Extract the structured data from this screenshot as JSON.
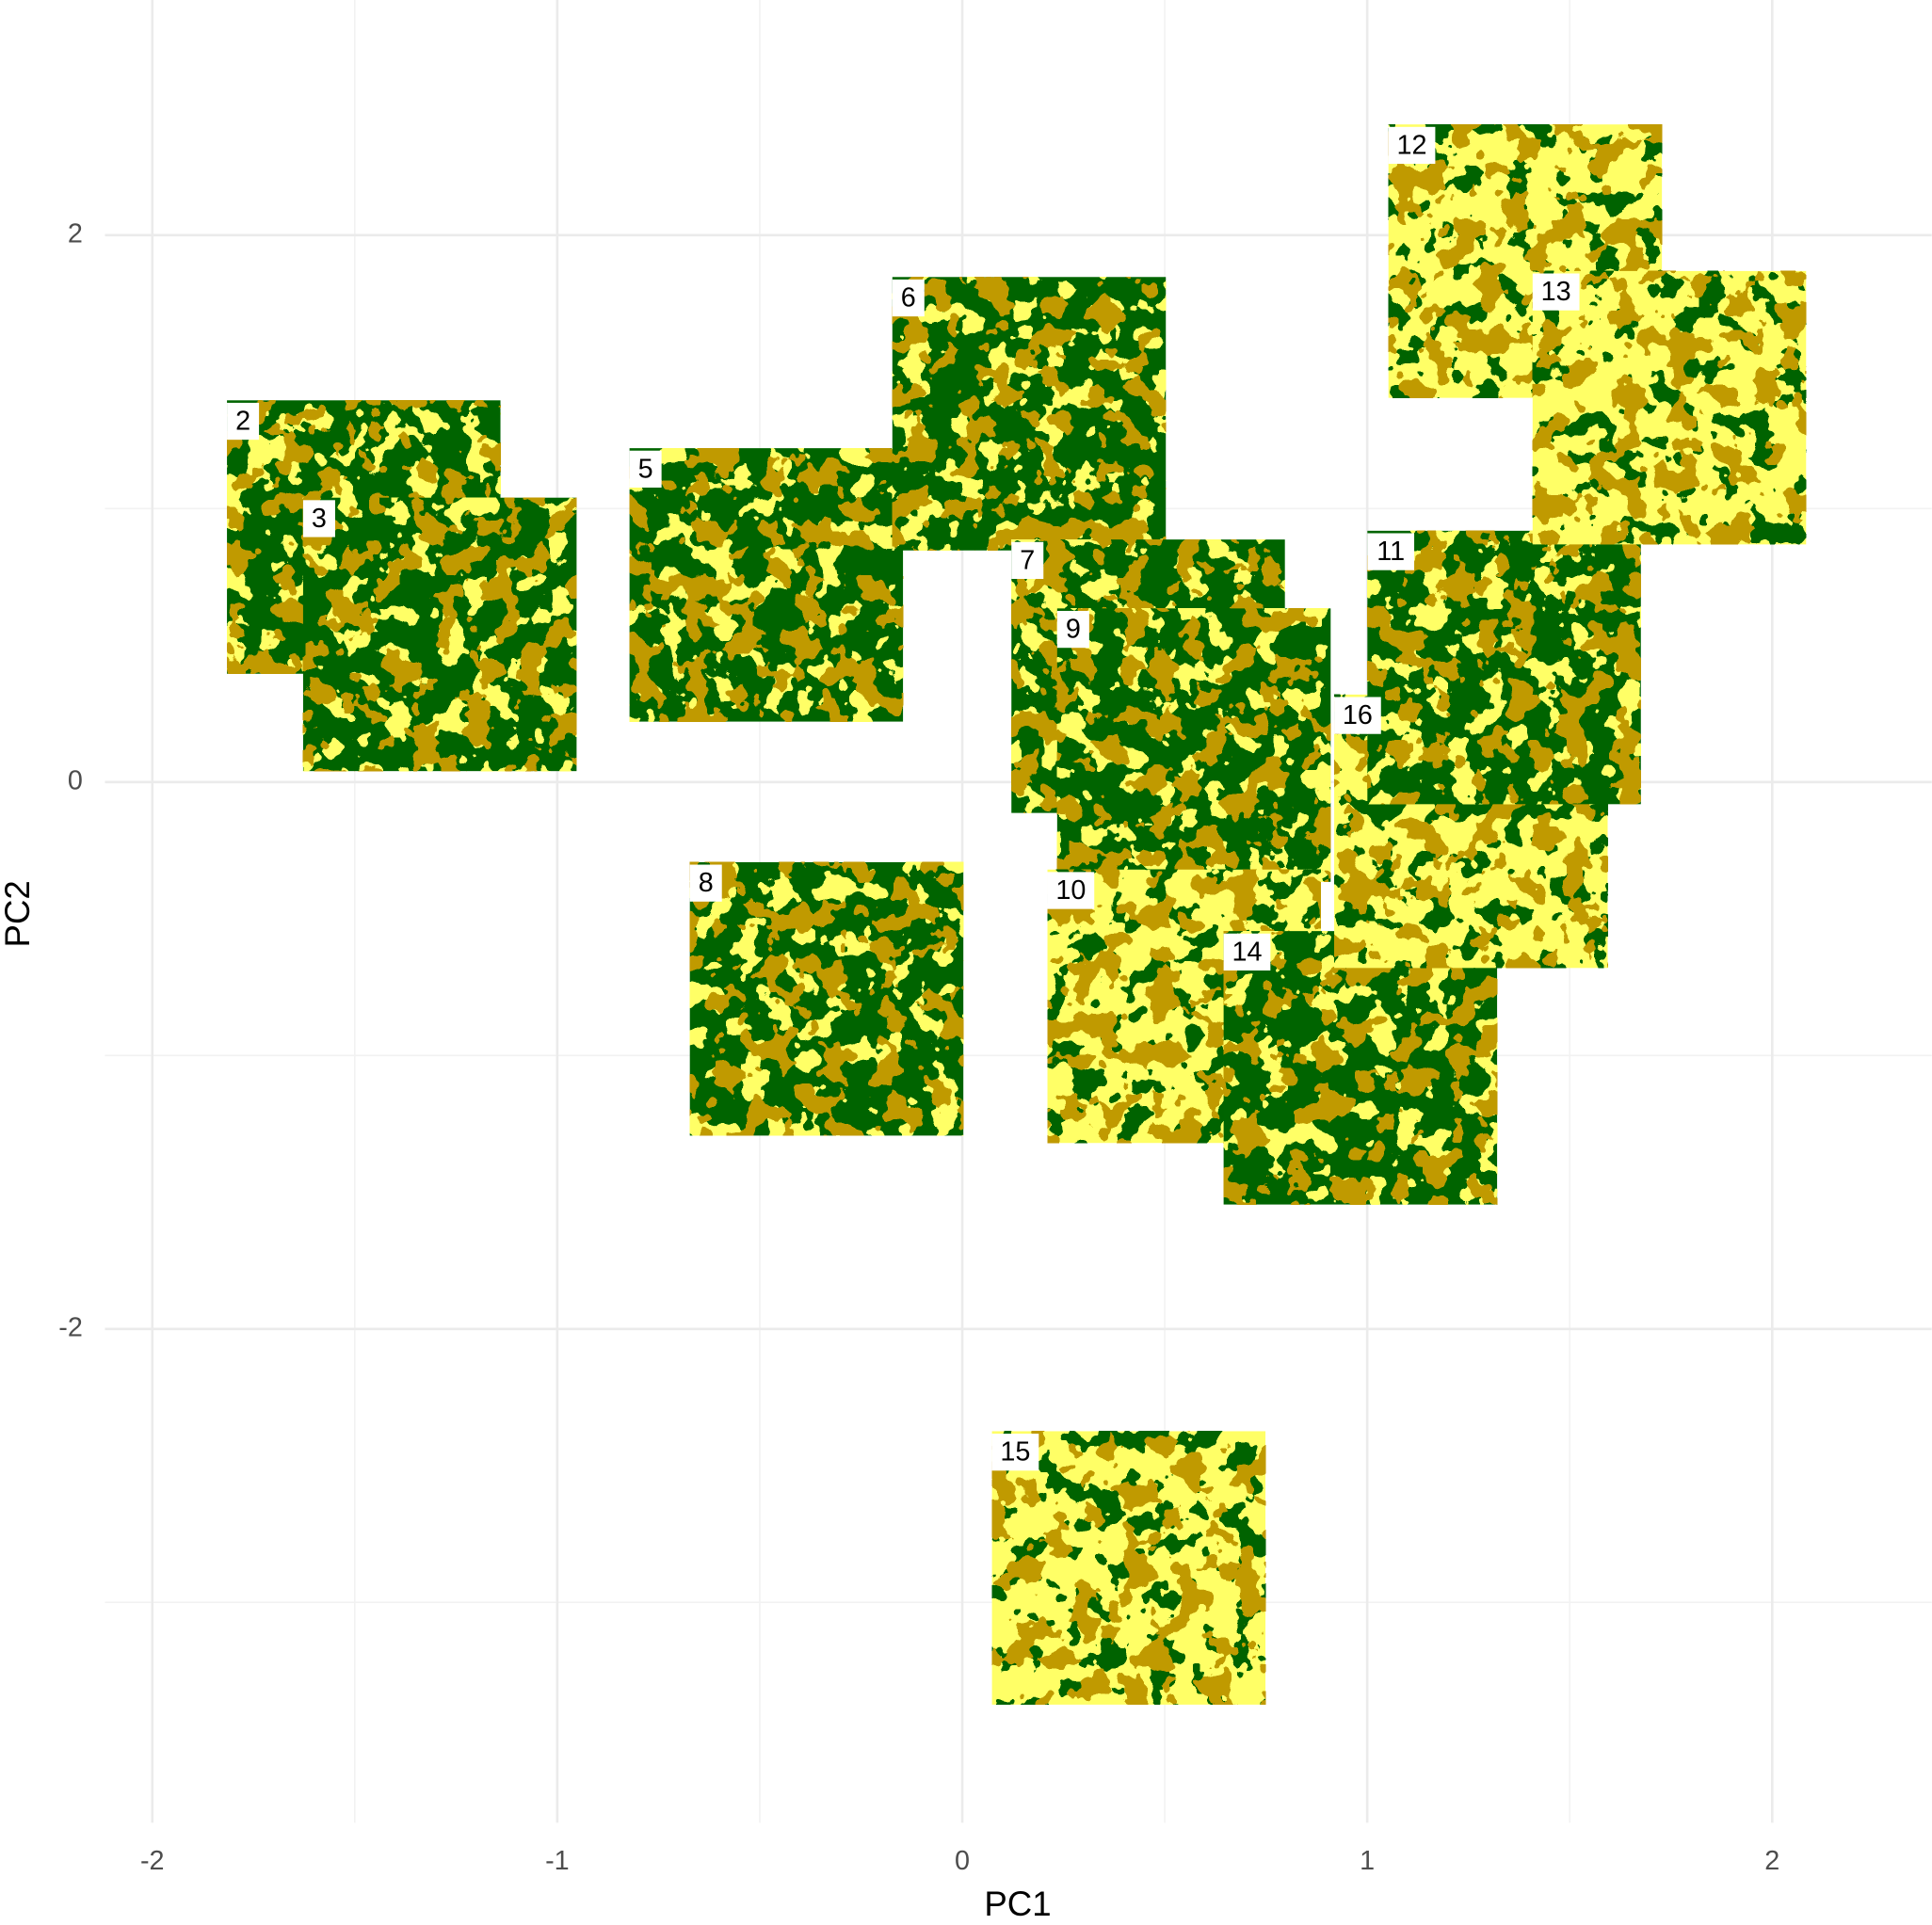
{
  "chart_data": {
    "type": "scatter",
    "xlabel": "PC1",
    "ylabel": "PC2",
    "labels": [
      "2",
      "3",
      "5",
      "6",
      "7",
      "9",
      "8",
      "10",
      "14",
      "16",
      "11",
      "12",
      "13",
      "15"
    ],
    "x": [
      -1.478,
      -1.29,
      -0.484,
      0.165,
      0.459,
      0.572,
      -0.335,
      0.548,
      0.983,
      1.256,
      1.338,
      1.39,
      1.746,
      0.411
    ],
    "values": [
      0.896,
      0.54,
      0.721,
      1.347,
      0.387,
      0.135,
      -0.793,
      -0.82,
      -1.045,
      -0.18,
      0.419,
      1.905,
      1.369,
      -2.874
    ],
    "colors": [
      "#006400",
      "#006400",
      "#006400",
      "#006400",
      "#006400",
      "#006400",
      "#006400",
      "#ffff66",
      "#006400",
      "#ffff66",
      "#006400",
      "#ffff66",
      "#ffff66",
      "#ffff66"
    ],
    "palette": [
      "#ffff66",
      "#c09a00",
      "#006400"
    ],
    "xlim": [
      -2.117,
      2.394
    ],
    "ylim": [
      -3.806,
      2.86
    ],
    "xticks": [
      -2,
      -1,
      0,
      1,
      2
    ],
    "yticks": [
      -2,
      0,
      2
    ],
    "xminor": [
      -1.5,
      -0.5,
      0.5,
      1.5
    ],
    "yminor": [
      -3,
      -1,
      1
    ],
    "grid": true
  }
}
